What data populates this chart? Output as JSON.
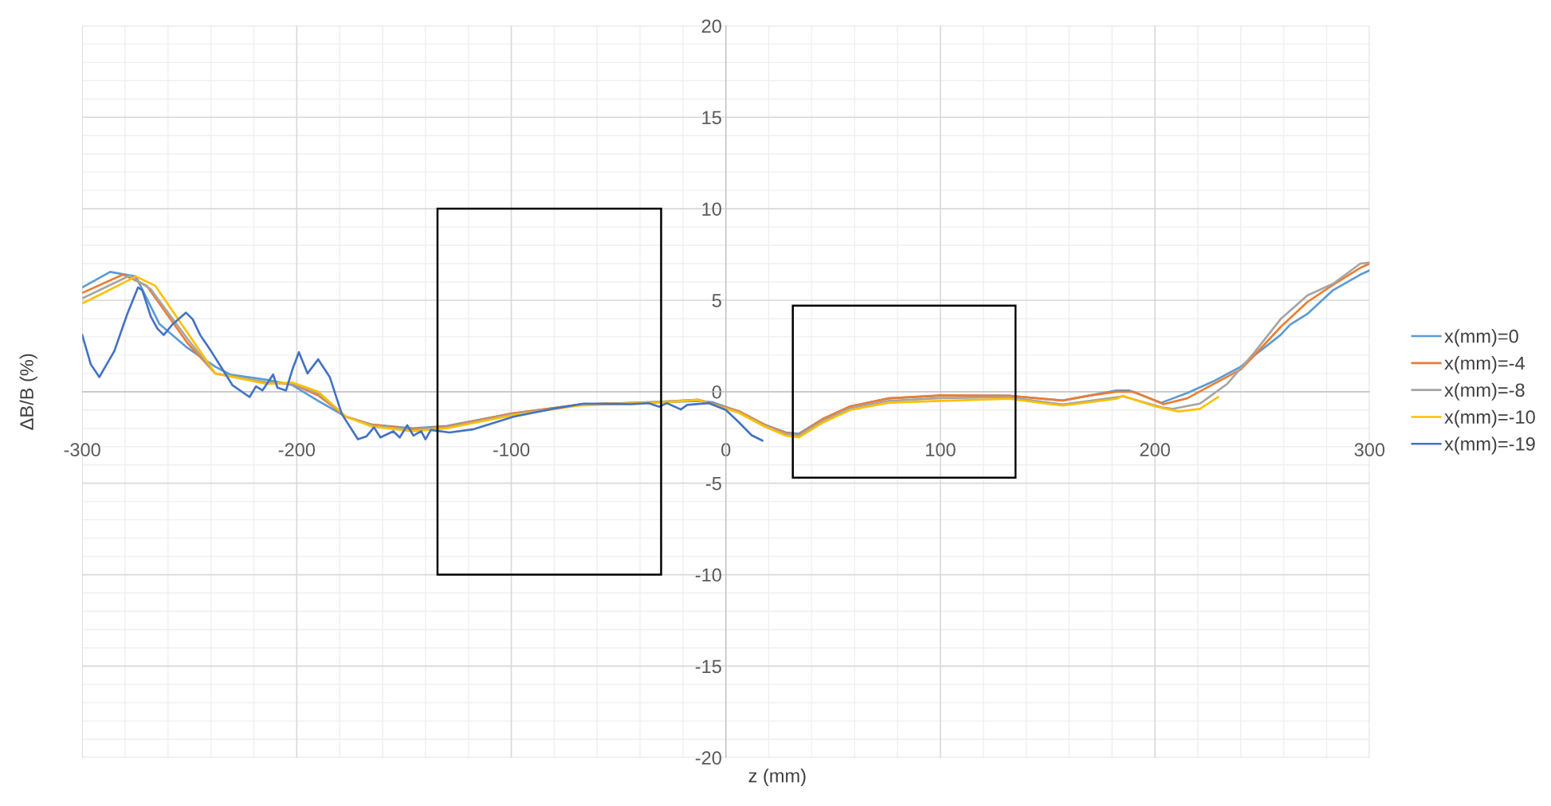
{
  "chart_data": {
    "type": "line",
    "xlabel": "z (mm)",
    "ylabel": "ΔB/B (%)",
    "xlim": [
      -300,
      300
    ],
    "xticks": [
      -300,
      -200,
      -100,
      0,
      100,
      200,
      300
    ],
    "ylim": [
      -20,
      20
    ],
    "yticks": [
      -20,
      -15,
      -10,
      -5,
      0,
      5,
      10,
      15,
      20
    ],
    "grid": true,
    "legend": "right",
    "marker": "none",
    "line_style": "solid",
    "series": [
      {
        "name": "x(mm)=0",
        "color": "#5b9bd5",
        "x": [
          -300,
          -287,
          -275,
          -264,
          -251,
          -238,
          -231,
          -214,
          -202,
          -190,
          -177,
          -165,
          -146,
          -130,
          -100,
          -68,
          -31,
          -13,
          -6,
          6,
          18,
          28,
          34,
          45,
          58,
          76,
          100,
          132,
          157,
          169,
          182,
          188,
          203,
          215,
          227.5,
          240,
          246,
          258.5,
          263,
          271,
          283,
          295.7,
          300
        ],
        "values": [
          5.7,
          6.55,
          6.3,
          3.7,
          2.4,
          1.37,
          0.94,
          0.65,
          0.36,
          -0.5,
          -1.37,
          -1.8,
          -2.0,
          -1.87,
          -1.2,
          -0.7,
          -0.58,
          -0.5,
          -0.58,
          -1.08,
          -1.8,
          -2.23,
          -2.3,
          -1.5,
          -0.8,
          -0.36,
          -0.22,
          -0.22,
          -0.48,
          -0.22,
          0.07,
          0.07,
          -0.6,
          -0.07,
          0.58,
          1.37,
          1.95,
          3.1,
          3.67,
          4.25,
          5.55,
          6.4,
          6.63
        ]
      },
      {
        "name": "x(mm)=-4",
        "color": "#ed7d31",
        "x": [
          -300,
          -281,
          -270,
          -251,
          -238,
          -214,
          -202,
          -190,
          -177,
          -165,
          -146,
          -130,
          -100,
          -68,
          -31,
          -13,
          6,
          18,
          28,
          34,
          45,
          58,
          76,
          100,
          132,
          157,
          169,
          182,
          190,
          204,
          215,
          227.5,
          240,
          246,
          258.5,
          271,
          283,
          295.7,
          300
        ],
        "values": [
          5.4,
          6.4,
          5.8,
          2.67,
          1.0,
          0.5,
          0.43,
          -0.2,
          -1.37,
          -1.8,
          -2.05,
          -1.9,
          -1.2,
          -0.7,
          -0.55,
          -0.43,
          -1.05,
          -1.8,
          -2.25,
          -2.35,
          -1.5,
          -0.8,
          -0.36,
          -0.2,
          -0.22,
          -0.48,
          -0.22,
          0.0,
          0.0,
          -0.68,
          -0.36,
          0.43,
          1.22,
          1.95,
          3.53,
          4.9,
          5.84,
          6.77,
          7.0
        ]
      },
      {
        "name": "x(mm)=-8",
        "color": "#a5a5a5",
        "x": [
          -300,
          -278,
          -268,
          -251,
          -238,
          -214,
          -202,
          -190,
          -177,
          -165,
          -146,
          -130,
          -100,
          -68,
          -31,
          -13,
          6,
          18,
          28,
          34,
          45,
          58,
          76,
          100,
          132,
          157,
          182,
          185,
          203,
          208,
          221,
          233.7,
          246,
          258.5,
          271,
          283,
          295.7,
          300
        ],
        "values": [
          5.1,
          6.34,
          5.6,
          2.9,
          1.0,
          0.5,
          0.45,
          -0.1,
          -1.37,
          -1.85,
          -2.1,
          -1.95,
          -1.25,
          -0.72,
          -0.55,
          -0.45,
          -1.1,
          -1.85,
          -2.3,
          -2.4,
          -1.6,
          -0.9,
          -0.5,
          -0.35,
          -0.3,
          -0.7,
          -0.3,
          -0.25,
          -0.85,
          -0.94,
          -0.65,
          0.43,
          2.1,
          3.96,
          5.26,
          5.9,
          7.0,
          7.06
        ]
      },
      {
        "name": "x(mm)=-10",
        "color": "#ffc000",
        "x": [
          -300,
          -290,
          -275,
          -266,
          -251,
          -238,
          -214,
          -202,
          -190,
          -177,
          -165,
          -146,
          -130,
          -100,
          -68,
          -31,
          -13,
          6,
          18,
          28,
          34,
          45,
          58,
          76,
          100,
          132,
          157,
          182,
          185,
          200,
          211,
          221,
          229.4
        ],
        "values": [
          4.83,
          5.4,
          6.3,
          5.8,
          3.24,
          1.0,
          0.43,
          0.5,
          0.0,
          -1.37,
          -1.9,
          -2.16,
          -2.0,
          -1.3,
          -0.75,
          -0.6,
          -0.45,
          -1.15,
          -1.9,
          -2.4,
          -2.5,
          -1.7,
          -1.0,
          -0.6,
          -0.5,
          -0.39,
          -0.76,
          -0.39,
          -0.22,
          -0.8,
          -1.08,
          -0.94,
          -0.29
        ]
      },
      {
        "name": "x(mm)=-19",
        "color": "#4472c4",
        "x": [
          -300,
          -296,
          -292,
          -285,
          -279,
          -274,
          -272,
          -268,
          -265,
          -262,
          -258,
          -251.6,
          -248.5,
          -245,
          -240,
          -235,
          -230,
          -222,
          -219,
          -216,
          -211,
          -209,
          -205,
          -202,
          -199,
          -195,
          -190,
          -184.6,
          -179,
          -171.5,
          -167.6,
          -164,
          -161,
          -155,
          -152,
          -148.5,
          -145.6,
          -142,
          -140,
          -137.5,
          -128.8,
          -118,
          -99,
          -81,
          -66,
          -44,
          -36,
          -31,
          -27.5,
          -21,
          -18,
          -8,
          0,
          6,
          12,
          17
        ],
        "values": [
          3.1,
          1.5,
          0.8,
          2.23,
          4.25,
          5.7,
          5.55,
          4.1,
          3.46,
          3.1,
          3.67,
          4.32,
          3.96,
          3.1,
          2.23,
          1.3,
          0.36,
          -0.29,
          0.29,
          0.07,
          0.94,
          0.22,
          0.07,
          1.22,
          2.16,
          1.0,
          1.77,
          0.8,
          -1.22,
          -2.6,
          -2.45,
          -1.95,
          -2.5,
          -2.16,
          -2.5,
          -1.83,
          -2.4,
          -2.16,
          -2.6,
          -2.09,
          -2.23,
          -2.06,
          -1.37,
          -0.94,
          -0.65,
          -0.68,
          -0.63,
          -0.82,
          -0.62,
          -0.97,
          -0.72,
          -0.62,
          -1.0,
          -1.66,
          -2.38,
          -2.67
        ]
      }
    ]
  }
}
